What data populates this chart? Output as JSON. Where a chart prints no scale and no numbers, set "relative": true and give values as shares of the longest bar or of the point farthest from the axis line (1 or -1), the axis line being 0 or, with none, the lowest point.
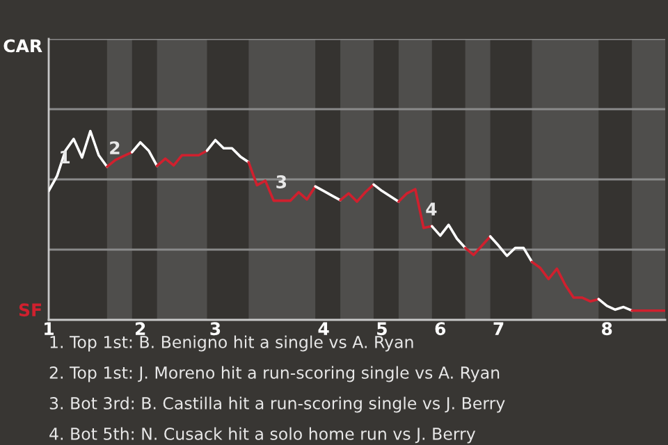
{
  "chart_data": {
    "type": "line",
    "relative": true,
    "categories": [
      "1",
      null,
      null,
      null,
      null,
      null,
      null,
      null,
      null,
      null,
      null,
      "2",
      null,
      null,
      null,
      null,
      null,
      null,
      null,
      null,
      "3",
      null,
      null,
      null,
      null,
      null,
      null,
      null,
      null,
      null,
      null,
      null,
      null,
      "4",
      null,
      null,
      null,
      null,
      null,
      null,
      "5",
      null,
      null,
      null,
      null,
      null,
      null,
      "6",
      null,
      null,
      null,
      null,
      null,
      null,
      "7",
      null,
      null,
      null,
      null,
      null,
      null,
      null,
      null,
      null,
      null,
      null,
      null,
      "8",
      null,
      null,
      null,
      null,
      null,
      null,
      null
    ],
    "series": [
      {
        "color": "#ffffff",
        "values": [
          0.683,
          0.762,
          0.896,
          0.958,
          0.86,
          1,
          0.872,
          0.811,
          null,
          null,
          null,
          null,
          null,
          null,
          null,
          null,
          null,
          null,
          null,
          null,
          null,
          null,
          null,
          null,
          null,
          null,
          null,
          null,
          null,
          null,
          null,
          null,
          null,
          null,
          null,
          null,
          null,
          null,
          null,
          null,
          null,
          null,
          null,
          null,
          null,
          null,
          null,
          null,
          null,
          null,
          null,
          null,
          null,
          null,
          null,
          null,
          null,
          null,
          null,
          null,
          null,
          null,
          null,
          null,
          null,
          null,
          null,
          null,
          null,
          null,
          null,
          null,
          null,
          null,
          null
        ]
      },
      {
        "color": "#d0202e",
        "values": [
          null,
          null,
          null,
          null,
          null,
          null,
          null,
          0.811,
          0.847,
          0.868,
          0.888,
          null,
          null,
          null,
          null,
          null,
          null,
          null,
          null,
          null,
          null,
          null,
          null,
          null,
          null,
          null,
          null,
          null,
          null,
          null,
          null,
          null,
          null,
          null,
          null,
          null,
          null,
          null,
          null,
          null,
          null,
          null,
          null,
          null,
          null,
          null,
          null,
          null,
          null,
          null,
          null,
          null,
          null,
          null,
          null,
          null,
          null,
          null,
          null,
          null,
          null,
          null,
          null,
          null,
          null,
          null,
          null,
          null,
          null,
          null,
          null,
          null,
          null,
          null,
          null
        ]
      },
      {
        "color": "#ffffff",
        "values": [
          null,
          null,
          null,
          null,
          null,
          null,
          null,
          null,
          null,
          null,
          0.888,
          0.94,
          0.896,
          0.815,
          null,
          null,
          null,
          null,
          null,
          null,
          null,
          null,
          null,
          null,
          null,
          null,
          null,
          null,
          null,
          null,
          null,
          null,
          null,
          null,
          null,
          null,
          null,
          null,
          null,
          null,
          null,
          null,
          null,
          null,
          null,
          null,
          null,
          null,
          null,
          null,
          null,
          null,
          null,
          null,
          null,
          null,
          null,
          null,
          null,
          null,
          null,
          null,
          null,
          null,
          null,
          null,
          null,
          null,
          null,
          null,
          null,
          null,
          null,
          null,
          null
        ]
      },
      {
        "color": "#d0202e",
        "values": [
          null,
          null,
          null,
          null,
          null,
          null,
          null,
          null,
          null,
          null,
          null,
          null,
          null,
          0.815,
          0.854,
          0.818,
          0.872,
          0.872,
          0.872,
          0.896,
          null,
          null,
          null,
          null,
          null,
          null,
          null,
          null,
          null,
          null,
          null,
          null,
          null,
          null,
          null,
          null,
          null,
          null,
          null,
          null,
          null,
          null,
          null,
          null,
          null,
          null,
          null,
          null,
          null,
          null,
          null,
          null,
          null,
          null,
          null,
          null,
          null,
          null,
          null,
          null,
          null,
          null,
          null,
          null,
          null,
          null,
          null,
          null,
          null,
          null,
          null,
          null,
          null,
          null,
          null
        ]
      },
      {
        "color": "#ffffff",
        "values": [
          null,
          null,
          null,
          null,
          null,
          null,
          null,
          null,
          null,
          null,
          null,
          null,
          null,
          null,
          null,
          null,
          null,
          null,
          null,
          0.896,
          0.952,
          0.909,
          0.909,
          0.865,
          0.835,
          null,
          null,
          null,
          null,
          null,
          null,
          null,
          null,
          null,
          null,
          null,
          null,
          null,
          null,
          null,
          null,
          null,
          null,
          null,
          null,
          null,
          null,
          null,
          null,
          null,
          null,
          null,
          null,
          null,
          null,
          null,
          null,
          null,
          null,
          null,
          null,
          null,
          null,
          null,
          null,
          null,
          null,
          null,
          null,
          null,
          null,
          null,
          null,
          null,
          null
        ]
      },
      {
        "color": "#d0202e",
        "values": [
          null,
          null,
          null,
          null,
          null,
          null,
          null,
          null,
          null,
          null,
          null,
          null,
          null,
          null,
          null,
          null,
          null,
          null,
          null,
          null,
          null,
          null,
          null,
          null,
          0.835,
          0.713,
          0.737,
          0.631,
          0.631,
          0.631,
          0.676,
          0.638,
          0.707,
          null,
          null,
          null,
          null,
          null,
          null,
          null,
          null,
          null,
          null,
          null,
          null,
          null,
          null,
          null,
          null,
          null,
          null,
          null,
          null,
          null,
          null,
          null,
          null,
          null,
          null,
          null,
          null,
          null,
          null,
          null,
          null,
          null,
          null,
          null,
          null,
          null,
          null,
          null,
          null,
          null,
          null
        ]
      },
      {
        "color": "#ffffff",
        "values": [
          null,
          null,
          null,
          null,
          null,
          null,
          null,
          null,
          null,
          null,
          null,
          null,
          null,
          null,
          null,
          null,
          null,
          null,
          null,
          null,
          null,
          null,
          null,
          null,
          null,
          null,
          null,
          null,
          null,
          null,
          null,
          null,
          0.707,
          0.683,
          0.658,
          0.634,
          null,
          null,
          null,
          null,
          null,
          null,
          null,
          null,
          null,
          null,
          null,
          null,
          null,
          null,
          null,
          null,
          null,
          null,
          null,
          null,
          null,
          null,
          null,
          null,
          null,
          null,
          null,
          null,
          null,
          null,
          null,
          null,
          null,
          null,
          null,
          null,
          null,
          null,
          null
        ]
      },
      {
        "color": "#d0202e",
        "values": [
          null,
          null,
          null,
          null,
          null,
          null,
          null,
          null,
          null,
          null,
          null,
          null,
          null,
          null,
          null,
          null,
          null,
          null,
          null,
          null,
          null,
          null,
          null,
          null,
          null,
          null,
          null,
          null,
          null,
          null,
          null,
          null,
          null,
          null,
          null,
          0.634,
          0.67,
          0.626,
          0.676,
          0.717,
          null,
          null,
          null,
          null,
          null,
          null,
          null,
          null,
          null,
          null,
          null,
          null,
          null,
          null,
          null,
          null,
          null,
          null,
          null,
          null,
          null,
          null,
          null,
          null,
          null,
          null,
          null,
          null,
          null,
          null,
          null,
          null,
          null,
          null,
          null
        ]
      },
      {
        "color": "#ffffff",
        "values": [
          null,
          null,
          null,
          null,
          null,
          null,
          null,
          null,
          null,
          null,
          null,
          null,
          null,
          null,
          null,
          null,
          null,
          null,
          null,
          null,
          null,
          null,
          null,
          null,
          null,
          null,
          null,
          null,
          null,
          null,
          null,
          null,
          null,
          null,
          null,
          null,
          null,
          null,
          null,
          0.717,
          0.683,
          0.655,
          0.626,
          null,
          null,
          null,
          null,
          null,
          null,
          null,
          null,
          null,
          null,
          null,
          null,
          null,
          null,
          null,
          null,
          null,
          null,
          null,
          null,
          null,
          null,
          null,
          null,
          null,
          null,
          null,
          null,
          null,
          null,
          null,
          null
        ]
      },
      {
        "color": "#d0202e",
        "values": [
          null,
          null,
          null,
          null,
          null,
          null,
          null,
          null,
          null,
          null,
          null,
          null,
          null,
          null,
          null,
          null,
          null,
          null,
          null,
          null,
          null,
          null,
          null,
          null,
          null,
          null,
          null,
          null,
          null,
          null,
          null,
          null,
          null,
          null,
          null,
          null,
          null,
          null,
          null,
          null,
          null,
          null,
          0.626,
          0.67,
          0.692,
          0.487,
          0.496,
          null,
          null,
          null,
          null,
          null,
          null,
          null,
          null,
          null,
          null,
          null,
          null,
          null,
          null,
          null,
          null,
          null,
          null,
          null,
          null,
          null,
          null,
          null,
          null,
          null,
          null,
          null,
          null
        ]
      },
      {
        "color": "#ffffff",
        "values": [
          null,
          null,
          null,
          null,
          null,
          null,
          null,
          null,
          null,
          null,
          null,
          null,
          null,
          null,
          null,
          null,
          null,
          null,
          null,
          null,
          null,
          null,
          null,
          null,
          null,
          null,
          null,
          null,
          null,
          null,
          null,
          null,
          null,
          null,
          null,
          null,
          null,
          null,
          null,
          null,
          null,
          null,
          null,
          null,
          null,
          null,
          0.496,
          0.446,
          0.503,
          0.43,
          0.381,
          null,
          null,
          null,
          null,
          null,
          null,
          null,
          null,
          null,
          null,
          null,
          null,
          null,
          null,
          null,
          null,
          null,
          null,
          null,
          null,
          null,
          null,
          null,
          null
        ]
      },
      {
        "color": "#d0202e",
        "values": [
          null,
          null,
          null,
          null,
          null,
          null,
          null,
          null,
          null,
          null,
          null,
          null,
          null,
          null,
          null,
          null,
          null,
          null,
          null,
          null,
          null,
          null,
          null,
          null,
          null,
          null,
          null,
          null,
          null,
          null,
          null,
          null,
          null,
          null,
          null,
          null,
          null,
          null,
          null,
          null,
          null,
          null,
          null,
          null,
          null,
          null,
          null,
          null,
          null,
          null,
          0.381,
          0.344,
          0.393,
          0.442,
          null,
          null,
          null,
          null,
          null,
          null,
          null,
          null,
          null,
          null,
          null,
          null,
          null,
          null,
          null,
          null,
          null,
          null,
          null,
          null,
          null
        ]
      },
      {
        "color": "#ffffff",
        "values": [
          null,
          null,
          null,
          null,
          null,
          null,
          null,
          null,
          null,
          null,
          null,
          null,
          null,
          null,
          null,
          null,
          null,
          null,
          null,
          null,
          null,
          null,
          null,
          null,
          null,
          null,
          null,
          null,
          null,
          null,
          null,
          null,
          null,
          null,
          null,
          null,
          null,
          null,
          null,
          null,
          null,
          null,
          null,
          null,
          null,
          null,
          null,
          null,
          null,
          null,
          null,
          null,
          null,
          0.442,
          0.393,
          0.339,
          0.381,
          0.381,
          0.307,
          null,
          null,
          null,
          null,
          null,
          null,
          null,
          null,
          null,
          null,
          null,
          null,
          null,
          null,
          null,
          null
        ]
      },
      {
        "color": "#d0202e",
        "values": [
          null,
          null,
          null,
          null,
          null,
          null,
          null,
          null,
          null,
          null,
          null,
          null,
          null,
          null,
          null,
          null,
          null,
          null,
          null,
          null,
          null,
          null,
          null,
          null,
          null,
          null,
          null,
          null,
          null,
          null,
          null,
          null,
          null,
          null,
          null,
          null,
          null,
          null,
          null,
          null,
          null,
          null,
          null,
          null,
          null,
          null,
          null,
          null,
          null,
          null,
          null,
          null,
          null,
          null,
          null,
          null,
          null,
          null,
          0.307,
          0.275,
          0.216,
          0.271,
          0.185,
          0.118,
          0.118,
          0.098,
          0.11,
          null,
          null,
          null,
          null,
          null,
          null,
          null,
          null
        ]
      },
      {
        "color": "#ffffff",
        "values": [
          null,
          null,
          null,
          null,
          null,
          null,
          null,
          null,
          null,
          null,
          null,
          null,
          null,
          null,
          null,
          null,
          null,
          null,
          null,
          null,
          null,
          null,
          null,
          null,
          null,
          null,
          null,
          null,
          null,
          null,
          null,
          null,
          null,
          null,
          null,
          null,
          null,
          null,
          null,
          null,
          null,
          null,
          null,
          null,
          null,
          null,
          null,
          null,
          null,
          null,
          null,
          null,
          null,
          null,
          null,
          null,
          null,
          null,
          null,
          null,
          null,
          null,
          null,
          null,
          null,
          null,
          0.11,
          0.074,
          0.054,
          0.068,
          0.049,
          null,
          null,
          null,
          null
        ]
      },
      {
        "color": "#d0202e",
        "values": [
          null,
          null,
          null,
          null,
          null,
          null,
          null,
          null,
          null,
          null,
          null,
          null,
          null,
          null,
          null,
          null,
          null,
          null,
          null,
          null,
          null,
          null,
          null,
          null,
          null,
          null,
          null,
          null,
          null,
          null,
          null,
          null,
          null,
          null,
          null,
          null,
          null,
          null,
          null,
          null,
          null,
          null,
          null,
          null,
          null,
          null,
          null,
          null,
          null,
          null,
          null,
          null,
          null,
          null,
          null,
          null,
          null,
          null,
          null,
          null,
          null,
          null,
          null,
          null,
          null,
          null,
          null,
          null,
          null,
          null,
          0.049,
          0.049,
          0.049,
          0.049,
          0.049
        ]
      }
    ],
    "ref_lines": [
      {
        "axis": "y",
        "value": 0.372,
        "color": "#8a8a8a"
      },
      {
        "axis": "y",
        "value": 0.744,
        "color": "#8a8a8a"
      },
      {
        "axis": "y",
        "value": 1.116,
        "color": "#8a8a8a"
      },
      {
        "axis": "y",
        "value": 1.488,
        "color": "#8a8a8a"
      }
    ],
    "annotations": [
      "CAR",
      "SF",
      {
        "text": "1",
        "y": 0.762
      },
      {
        "text": "2",
        "y": 0.811
      },
      {
        "text": "3",
        "y": 0.631
      },
      {
        "text": "4",
        "y": 0.487
      },
      "1. Top 1st: B. Benigno hit a single vs A. Ryan",
      "2. Top 1st: J. Moreno hit a run-scoring single vs A. Ryan",
      "3. Bot 3rd: B. Castilla hit a run-scoring single vs J. Berry",
      "4. Bot 5th: N. Cusack hit a solo home run vs J. Berry"
    ]
  }
}
